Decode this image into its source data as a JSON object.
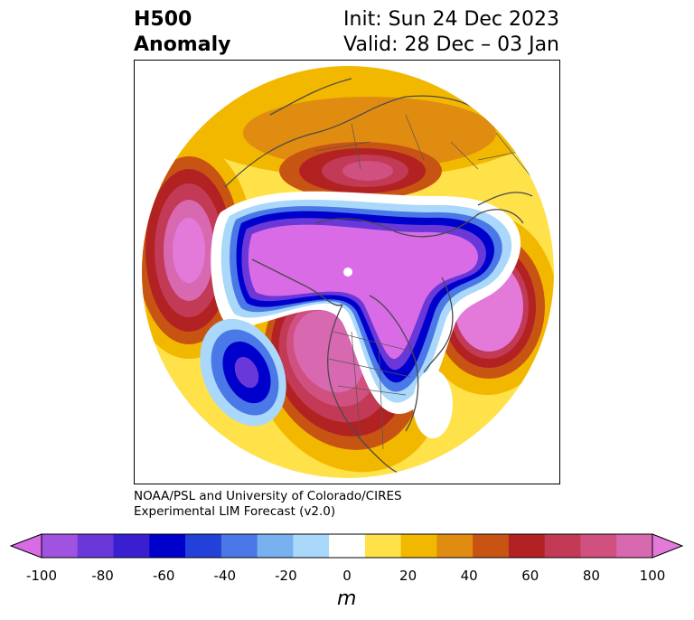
{
  "title": {
    "left_line1": "H500",
    "left_line2": "Anomaly",
    "right_line1": "Init: Sun 24 Dec 2023",
    "right_line2": "Valid: 28 Dec – 03 Jan"
  },
  "credit": {
    "line1": "NOAA/PSL and University of Colorado/CIRES",
    "line2": "Experimental LIM Forecast (v2.0)"
  },
  "colorbar": {
    "label": "m",
    "tick_labels": [
      "-100",
      "-80",
      "-60",
      "-40",
      "-20",
      "0",
      "20",
      "40",
      "60",
      "80",
      "100"
    ],
    "colors": [
      "#d96be6",
      "#a052e0",
      "#6a38d8",
      "#3a1fd0",
      "#0000cc",
      "#2340d8",
      "#4a78e6",
      "#78b0f0",
      "#aad8fa",
      "#ffffff",
      "#ffe14a",
      "#f2b800",
      "#e08c10",
      "#c85414",
      "#b22222",
      "#c23a56",
      "#d05080",
      "#d868b0",
      "#e37ad9"
    ]
  },
  "map": {
    "projection": "north polar stereographic",
    "colors": {
      "coast": "#4a4a4a",
      "border": "#555555"
    }
  }
}
